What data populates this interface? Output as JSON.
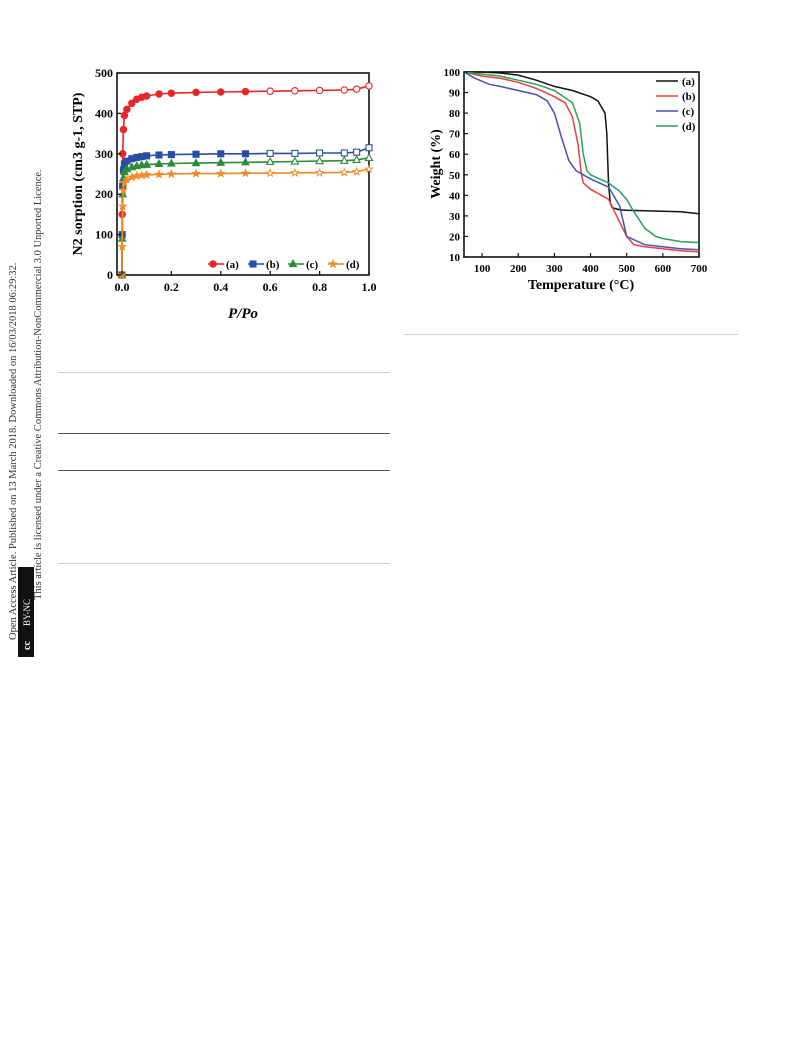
{
  "side_banner": {
    "line1": "Open Access Article. Published on 13 March 2018. Downloaded on 16/03/2018 06:29:32.",
    "line2": "This article is licensed under a Creative Commons Attribution-NonCommercial 3.0 Unported Licence.",
    "badge_cc": "cc",
    "badge_text": "BY-NC"
  },
  "colors": {
    "a_left": "#e8262a",
    "b_left": "#2a4ea6",
    "c_left": "#2e8b3a",
    "d_left": "#f08a2a",
    "a_right": "#111111",
    "b_right": "#e8403a",
    "c_right": "#4a4fb0",
    "d_right": "#27a058"
  },
  "chart_data": [
    {
      "type": "line",
      "xlabel": "P/Po",
      "ylabel": "N2 sorption (cm3 g-1, STP)",
      "xlim": [
        -0.02,
        1.0
      ],
      "ylim": [
        0,
        500
      ],
      "xticks": [
        "0.0",
        "0.2",
        "0.4",
        "0.6",
        "0.8",
        "1.0"
      ],
      "yticks": [
        "0",
        "100",
        "200",
        "300",
        "400",
        "500"
      ],
      "legend_position": "bottom-right",
      "series": [
        {
          "name": "(a)",
          "x": [
            0.0,
            0.001,
            0.003,
            0.006,
            0.01,
            0.02,
            0.04,
            0.06,
            0.08,
            0.1,
            0.15,
            0.2,
            0.3,
            0.4,
            0.5,
            0.6,
            0.7,
            0.8,
            0.9,
            0.95,
            1.0
          ],
          "y": [
            0,
            150,
            300,
            360,
            395,
            410,
            425,
            435,
            440,
            443,
            448,
            450,
            452,
            453,
            454,
            455,
            456,
            457,
            458,
            460,
            468
          ]
        },
        {
          "name": "(b)",
          "x": [
            0.0,
            0.001,
            0.003,
            0.006,
            0.01,
            0.02,
            0.04,
            0.06,
            0.08,
            0.1,
            0.15,
            0.2,
            0.3,
            0.4,
            0.5,
            0.6,
            0.7,
            0.8,
            0.9,
            0.95,
            1.0
          ],
          "y": [
            0,
            100,
            220,
            260,
            275,
            282,
            288,
            291,
            293,
            295,
            297,
            298,
            299,
            300,
            300,
            301,
            301,
            302,
            302,
            304,
            315
          ]
        },
        {
          "name": "(c)",
          "x": [
            0.0,
            0.001,
            0.003,
            0.006,
            0.01,
            0.02,
            0.04,
            0.06,
            0.08,
            0.1,
            0.15,
            0.2,
            0.3,
            0.4,
            0.5,
            0.6,
            0.7,
            0.8,
            0.9,
            0.95,
            1.0
          ],
          "y": [
            0,
            90,
            200,
            240,
            255,
            262,
            267,
            270,
            272,
            273,
            275,
            276,
            277,
            278,
            279,
            280,
            281,
            282,
            283,
            285,
            290
          ]
        },
        {
          "name": "(d)",
          "x": [
            0.0,
            0.001,
            0.003,
            0.006,
            0.01,
            0.02,
            0.04,
            0.06,
            0.08,
            0.1,
            0.15,
            0.2,
            0.3,
            0.4,
            0.5,
            0.6,
            0.7,
            0.8,
            0.9,
            0.95,
            1.0
          ],
          "y": [
            0,
            70,
            170,
            210,
            228,
            236,
            242,
            245,
            247,
            248,
            249,
            250,
            251,
            251,
            252,
            252,
            253,
            253,
            254,
            256,
            262
          ]
        }
      ]
    },
    {
      "type": "line",
      "xlabel": "Temperature (°C)",
      "ylabel": "Weight (%)",
      "xlim": [
        50,
        700
      ],
      "ylim": [
        10,
        100
      ],
      "xticks": [
        "100",
        "200",
        "300",
        "400",
        "500",
        "600",
        "700"
      ],
      "yticks": [
        "10",
        "20",
        "30",
        "40",
        "50",
        "60",
        "70",
        "80",
        "90",
        "100"
      ],
      "legend_position": "top-right",
      "series": [
        {
          "name": "(a)",
          "x": [
            50,
            100,
            150,
            200,
            250,
            300,
            350,
            400,
            420,
            440,
            445,
            450,
            455,
            460,
            480,
            500,
            550,
            600,
            650,
            700
          ],
          "y": [
            100,
            100,
            99.5,
            98.5,
            96,
            93,
            91,
            88,
            86,
            80,
            70,
            45,
            36,
            34,
            33,
            32.7,
            32.5,
            32.3,
            32,
            31
          ]
        },
        {
          "name": "(b)",
          "x": [
            50,
            100,
            150,
            200,
            250,
            300,
            330,
            350,
            365,
            375,
            380,
            400,
            450,
            500,
            520,
            550,
            600,
            650,
            700
          ],
          "y": [
            100,
            98,
            97,
            95,
            92,
            88,
            85,
            78,
            65,
            50,
            46,
            43,
            38,
            20,
            16,
            15,
            14,
            13,
            12.5
          ]
        },
        {
          "name": "(c)",
          "x": [
            50,
            80,
            120,
            150,
            200,
            250,
            280,
            300,
            320,
            340,
            360,
            380,
            400,
            450,
            480,
            500,
            550,
            600,
            650,
            700
          ],
          "y": [
            100,
            97,
            94,
            93,
            91,
            89,
            86,
            80,
            68,
            57,
            52,
            50,
            48,
            44,
            35,
            20,
            16,
            15,
            14,
            13.5
          ]
        },
        {
          "name": "(d)",
          "x": [
            50,
            100,
            150,
            200,
            250,
            300,
            350,
            370,
            380,
            390,
            400,
            450,
            480,
            500,
            520,
            550,
            580,
            600,
            650,
            700
          ],
          "y": [
            100,
            99,
            98,
            96,
            94,
            91,
            85,
            75,
            60,
            52,
            50,
            46,
            42,
            38,
            32,
            24,
            20,
            19,
            17.5,
            17
          ]
        }
      ]
    }
  ]
}
